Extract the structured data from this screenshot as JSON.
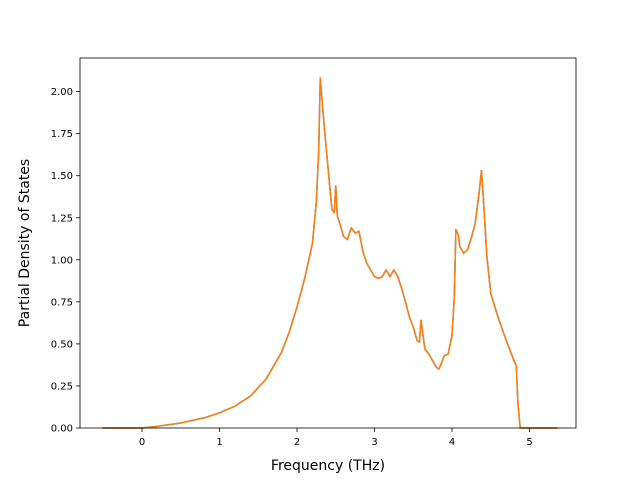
{
  "chart_data": {
    "type": "line",
    "title": "",
    "xlabel": "Frequency (THz)",
    "ylabel": "Partial Density of States",
    "xlim": [
      -0.8,
      5.6
    ],
    "ylim": [
      0.0,
      2.2
    ],
    "grid": false,
    "xticks": [
      0,
      1,
      2,
      3,
      4,
      5
    ],
    "xtick_labels": [
      "0",
      "1",
      "2",
      "3",
      "4",
      "5"
    ],
    "yticks": [
      0.0,
      0.25,
      0.5,
      0.75,
      1.0,
      1.25,
      1.5,
      1.75,
      2.0
    ],
    "ytick_labels": [
      "0.00",
      "0.25",
      "0.50",
      "0.75",
      "1.00",
      "1.25",
      "1.50",
      "1.75",
      "2.00"
    ],
    "series": [
      {
        "color": "#1f77b4",
        "x": [
          -0.5,
          0.0,
          0.2,
          0.5,
          0.8,
          1.0,
          1.2,
          1.4,
          1.6,
          1.8,
          1.9,
          2.0,
          2.1,
          2.2,
          2.25,
          2.28,
          2.3,
          2.35,
          2.4,
          2.45,
          2.48,
          2.5,
          2.52,
          2.55,
          2.6,
          2.65,
          2.7,
          2.75,
          2.8,
          2.85,
          2.9,
          3.0,
          3.05,
          3.1,
          3.15,
          3.2,
          3.25,
          3.3,
          3.35,
          3.4,
          3.45,
          3.5,
          3.55,
          3.58,
          3.6,
          3.65,
          3.7,
          3.75,
          3.8,
          3.83,
          3.85,
          3.9,
          3.95,
          4.0,
          4.03,
          4.05,
          4.08,
          4.1,
          4.15,
          4.2,
          4.25,
          4.3,
          4.35,
          4.38,
          4.4,
          4.45,
          4.5,
          4.6,
          4.7,
          4.8,
          4.83,
          4.85,
          4.88,
          5.0,
          5.35
        ],
        "values": [
          0.0,
          0.0,
          0.01,
          0.03,
          0.06,
          0.09,
          0.13,
          0.19,
          0.29,
          0.45,
          0.57,
          0.72,
          0.89,
          1.1,
          1.35,
          1.65,
          2.08,
          1.8,
          1.55,
          1.3,
          1.28,
          1.44,
          1.26,
          1.22,
          1.14,
          1.12,
          1.19,
          1.16,
          1.17,
          1.05,
          0.98,
          0.9,
          0.89,
          0.9,
          0.94,
          0.9,
          0.94,
          0.9,
          0.83,
          0.75,
          0.66,
          0.6,
          0.52,
          0.51,
          0.64,
          0.47,
          0.44,
          0.4,
          0.36,
          0.35,
          0.37,
          0.43,
          0.44,
          0.55,
          0.78,
          1.18,
          1.15,
          1.08,
          1.04,
          1.06,
          1.13,
          1.22,
          1.4,
          1.53,
          1.4,
          1.02,
          0.8,
          0.65,
          0.52,
          0.4,
          0.37,
          0.15,
          0.0,
          0.0,
          0.0
        ]
      },
      {
        "color": "#ff7f0e",
        "x": [
          -0.5,
          0.0,
          0.2,
          0.5,
          0.8,
          1.0,
          1.2,
          1.4,
          1.6,
          1.8,
          1.9,
          2.0,
          2.1,
          2.2,
          2.25,
          2.28,
          2.3,
          2.35,
          2.4,
          2.45,
          2.48,
          2.5,
          2.52,
          2.55,
          2.6,
          2.65,
          2.7,
          2.75,
          2.8,
          2.85,
          2.9,
          3.0,
          3.05,
          3.1,
          3.15,
          3.2,
          3.25,
          3.3,
          3.35,
          3.4,
          3.45,
          3.5,
          3.55,
          3.58,
          3.6,
          3.65,
          3.7,
          3.75,
          3.8,
          3.83,
          3.85,
          3.9,
          3.95,
          4.0,
          4.03,
          4.05,
          4.08,
          4.1,
          4.15,
          4.2,
          4.25,
          4.3,
          4.35,
          4.38,
          4.4,
          4.45,
          4.5,
          4.6,
          4.7,
          4.8,
          4.83,
          4.85,
          4.88,
          5.0,
          5.35
        ],
        "values": [
          0.0,
          0.0,
          0.01,
          0.03,
          0.06,
          0.09,
          0.13,
          0.19,
          0.29,
          0.45,
          0.57,
          0.72,
          0.89,
          1.1,
          1.35,
          1.65,
          2.08,
          1.8,
          1.55,
          1.3,
          1.28,
          1.44,
          1.26,
          1.22,
          1.14,
          1.12,
          1.19,
          1.16,
          1.17,
          1.05,
          0.98,
          0.9,
          0.89,
          0.9,
          0.94,
          0.9,
          0.94,
          0.9,
          0.83,
          0.75,
          0.66,
          0.6,
          0.52,
          0.51,
          0.64,
          0.47,
          0.44,
          0.4,
          0.36,
          0.35,
          0.37,
          0.43,
          0.44,
          0.55,
          0.78,
          1.18,
          1.15,
          1.08,
          1.04,
          1.06,
          1.13,
          1.22,
          1.4,
          1.53,
          1.4,
          1.02,
          0.8,
          0.65,
          0.52,
          0.4,
          0.37,
          0.15,
          0.0,
          0.0,
          0.0
        ]
      }
    ]
  }
}
